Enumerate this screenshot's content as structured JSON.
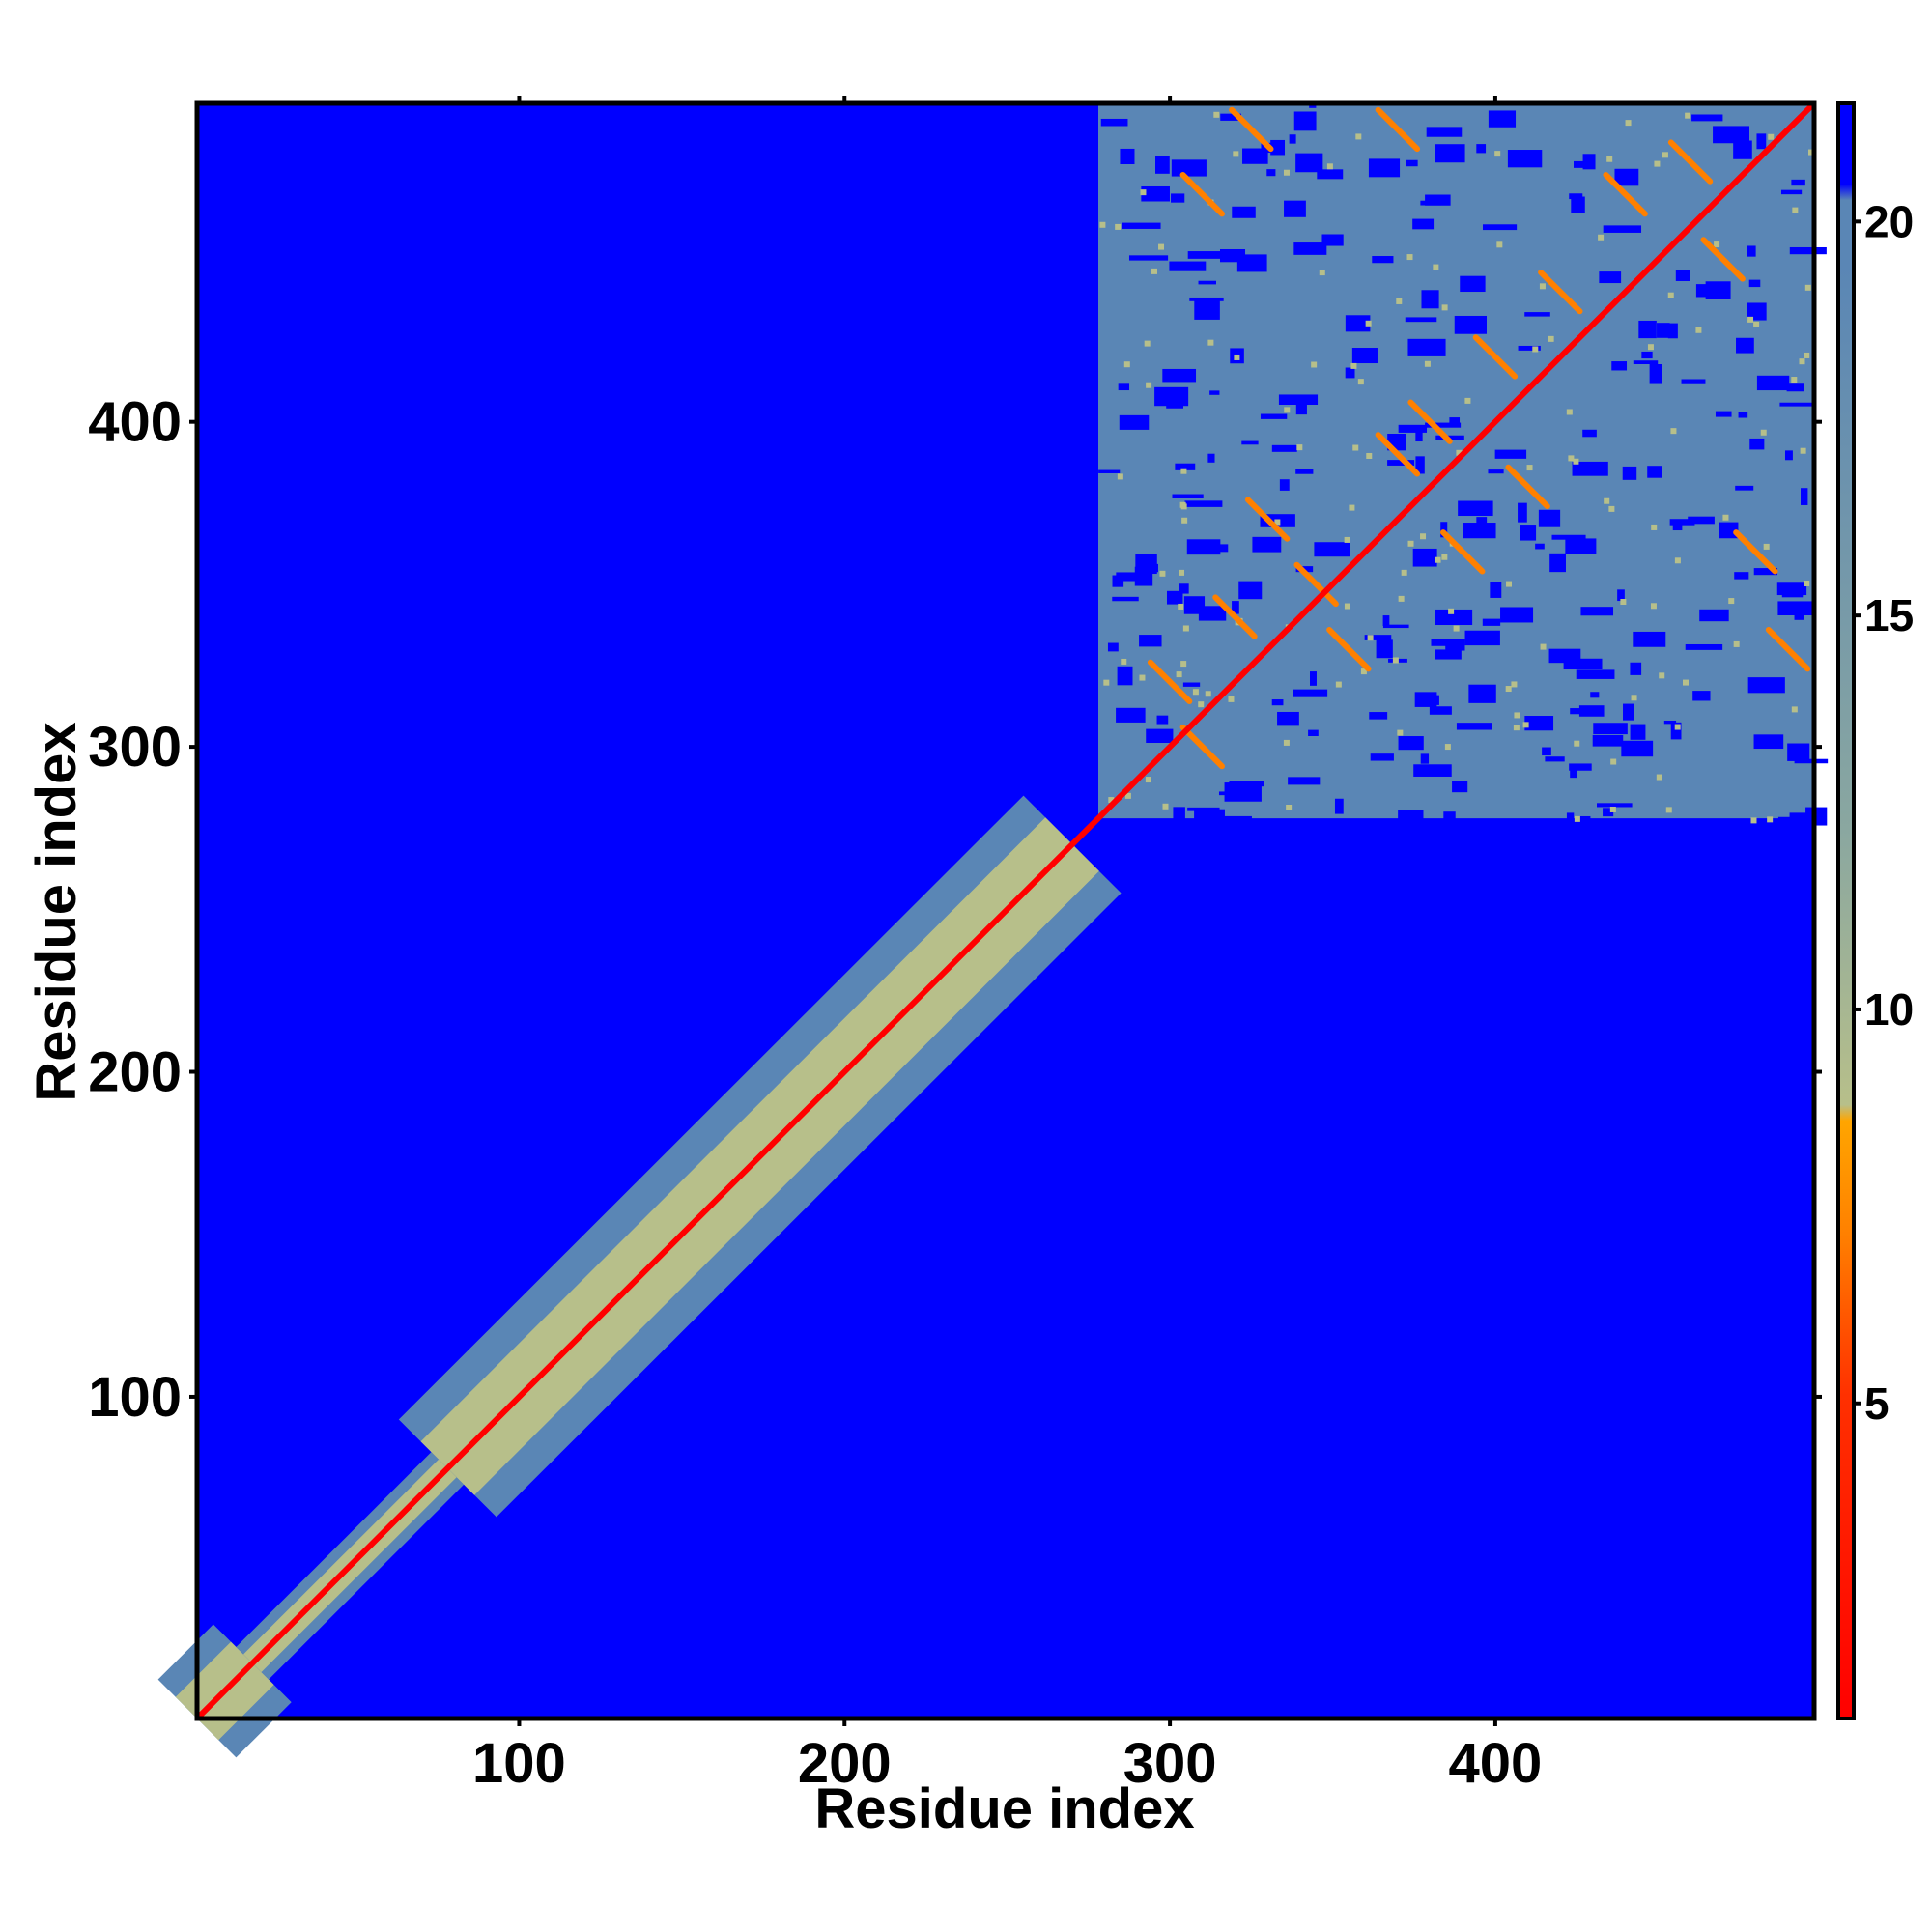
{
  "chart_data": {
    "type": "heatmap",
    "title": "",
    "xlabel": "Residue index",
    "ylabel": "Residue index",
    "xlim": [
      1,
      498
    ],
    "ylim": [
      1,
      498
    ],
    "x_ticks": [
      100,
      200,
      300,
      400
    ],
    "y_ticks": [
      100,
      200,
      300,
      400
    ],
    "colorbar": {
      "range": [
        1,
        21.5
      ],
      "ticks": [
        5,
        10,
        15,
        20
      ],
      "colors": {
        "low": "#ff0000",
        "mid_low": "#ff8000",
        "mid": "#ffa500",
        "mid_high": "#b7bf8a",
        "high": "#5a86b5",
        "max": "#0000ff"
      }
    },
    "background_color": "#0000ff",
    "diagonal": {
      "value": 1,
      "color": "#ff0000"
    },
    "regions": [
      {
        "name": "diagonal-band-segment",
        "from": 1,
        "to": 18,
        "half_width": 12
      },
      {
        "name": "diagonal-band-segment",
        "from": 18,
        "to": 78,
        "half_width": 5
      },
      {
        "name": "diagonal-band-segment",
        "from": 78,
        "to": 270,
        "half_width": 15
      },
      {
        "name": "dense-contact-block",
        "residue_range": [
          278,
          498
        ]
      }
    ],
    "contacts": [
      [
        300,
        320
      ],
      [
        310,
        300
      ],
      [
        320,
        340
      ],
      [
        330,
        370
      ],
      [
        345,
        350
      ],
      [
        355,
        330
      ],
      [
        370,
        390
      ],
      [
        380,
        400
      ],
      [
        390,
        360
      ],
      [
        400,
        420
      ],
      [
        410,
        380
      ],
      [
        420,
        440
      ],
      [
        440,
        470
      ],
      [
        460,
        480
      ],
      [
        470,
        450
      ],
      [
        480,
        360
      ],
      [
        490,
        330
      ],
      [
        325,
        490
      ],
      [
        370,
        490
      ],
      [
        310,
        470
      ]
    ]
  }
}
